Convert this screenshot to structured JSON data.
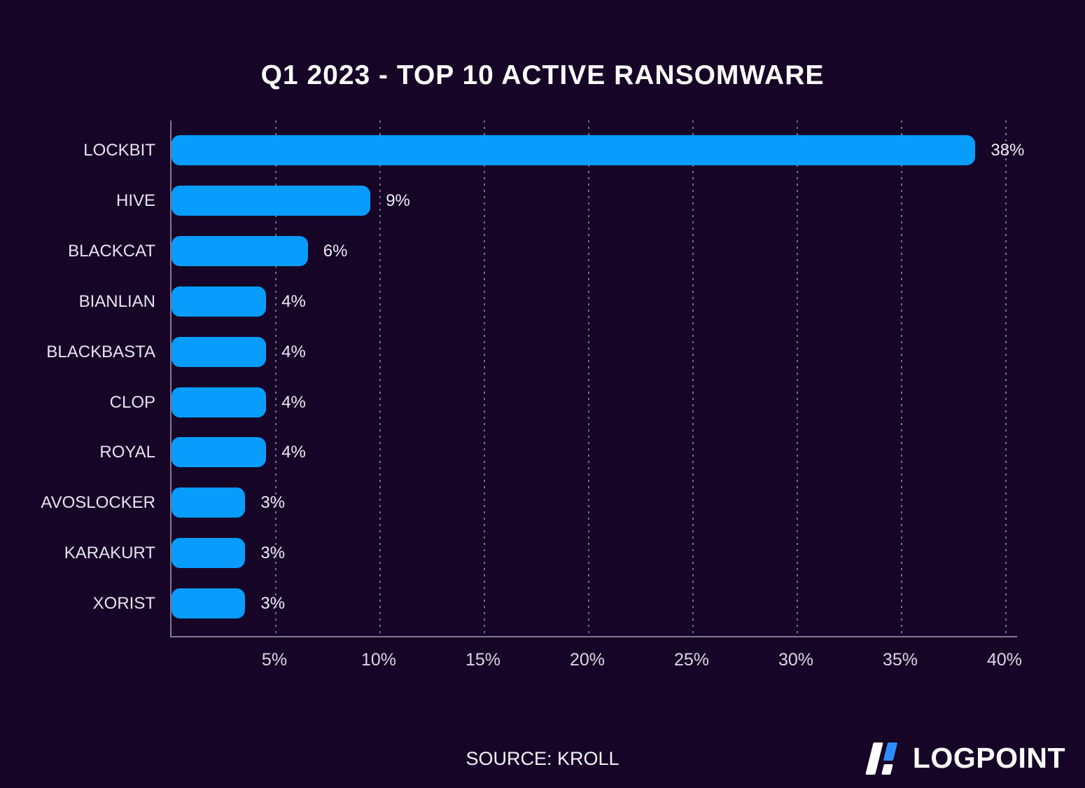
{
  "title": "Q1 2023 - TOP 10 ACTIVE RANSOMWARE",
  "source_note": "SOURCE: KROLL",
  "brand": {
    "name": "LOGPOINT",
    "logo_icon": "logpoint-slash-mark-icon"
  },
  "colors": {
    "background": "#170527",
    "bar": "#089DFC",
    "logo_accent": "#2F8CFF",
    "text": "#FFFFFF",
    "gridline": "rgba(200,193,215,0.55)"
  },
  "chart_data": {
    "type": "bar",
    "orientation": "horizontal",
    "title": "Q1 2023 - TOP 10 ACTIVE RANSOMWARE",
    "categories": [
      "LOCKBIT",
      "HIVE",
      "BLACKCAT",
      "BIANLIAN",
      "BLACKBASTA",
      "CLOP",
      "ROYAL",
      "AVOSLOCKER",
      "KARAKURT",
      "XORIST"
    ],
    "values": [
      38,
      9,
      6,
      4,
      4,
      4,
      4,
      3,
      3,
      3
    ],
    "value_labels": [
      "38%",
      "9%",
      "6%",
      "4%",
      "4%",
      "4%",
      "4%",
      "3%",
      "3%",
      "3%"
    ],
    "x_tick_values": [
      5,
      10,
      15,
      20,
      25,
      30,
      35,
      40
    ],
    "x_tick_labels": [
      "5%",
      "10%",
      "15%",
      "20%",
      "25%",
      "30%",
      "35%",
      "40%"
    ],
    "xlim": [
      0,
      40.6
    ],
    "xlabel": "",
    "ylabel": "",
    "grid": "dotted-vertical",
    "legend": "none"
  }
}
